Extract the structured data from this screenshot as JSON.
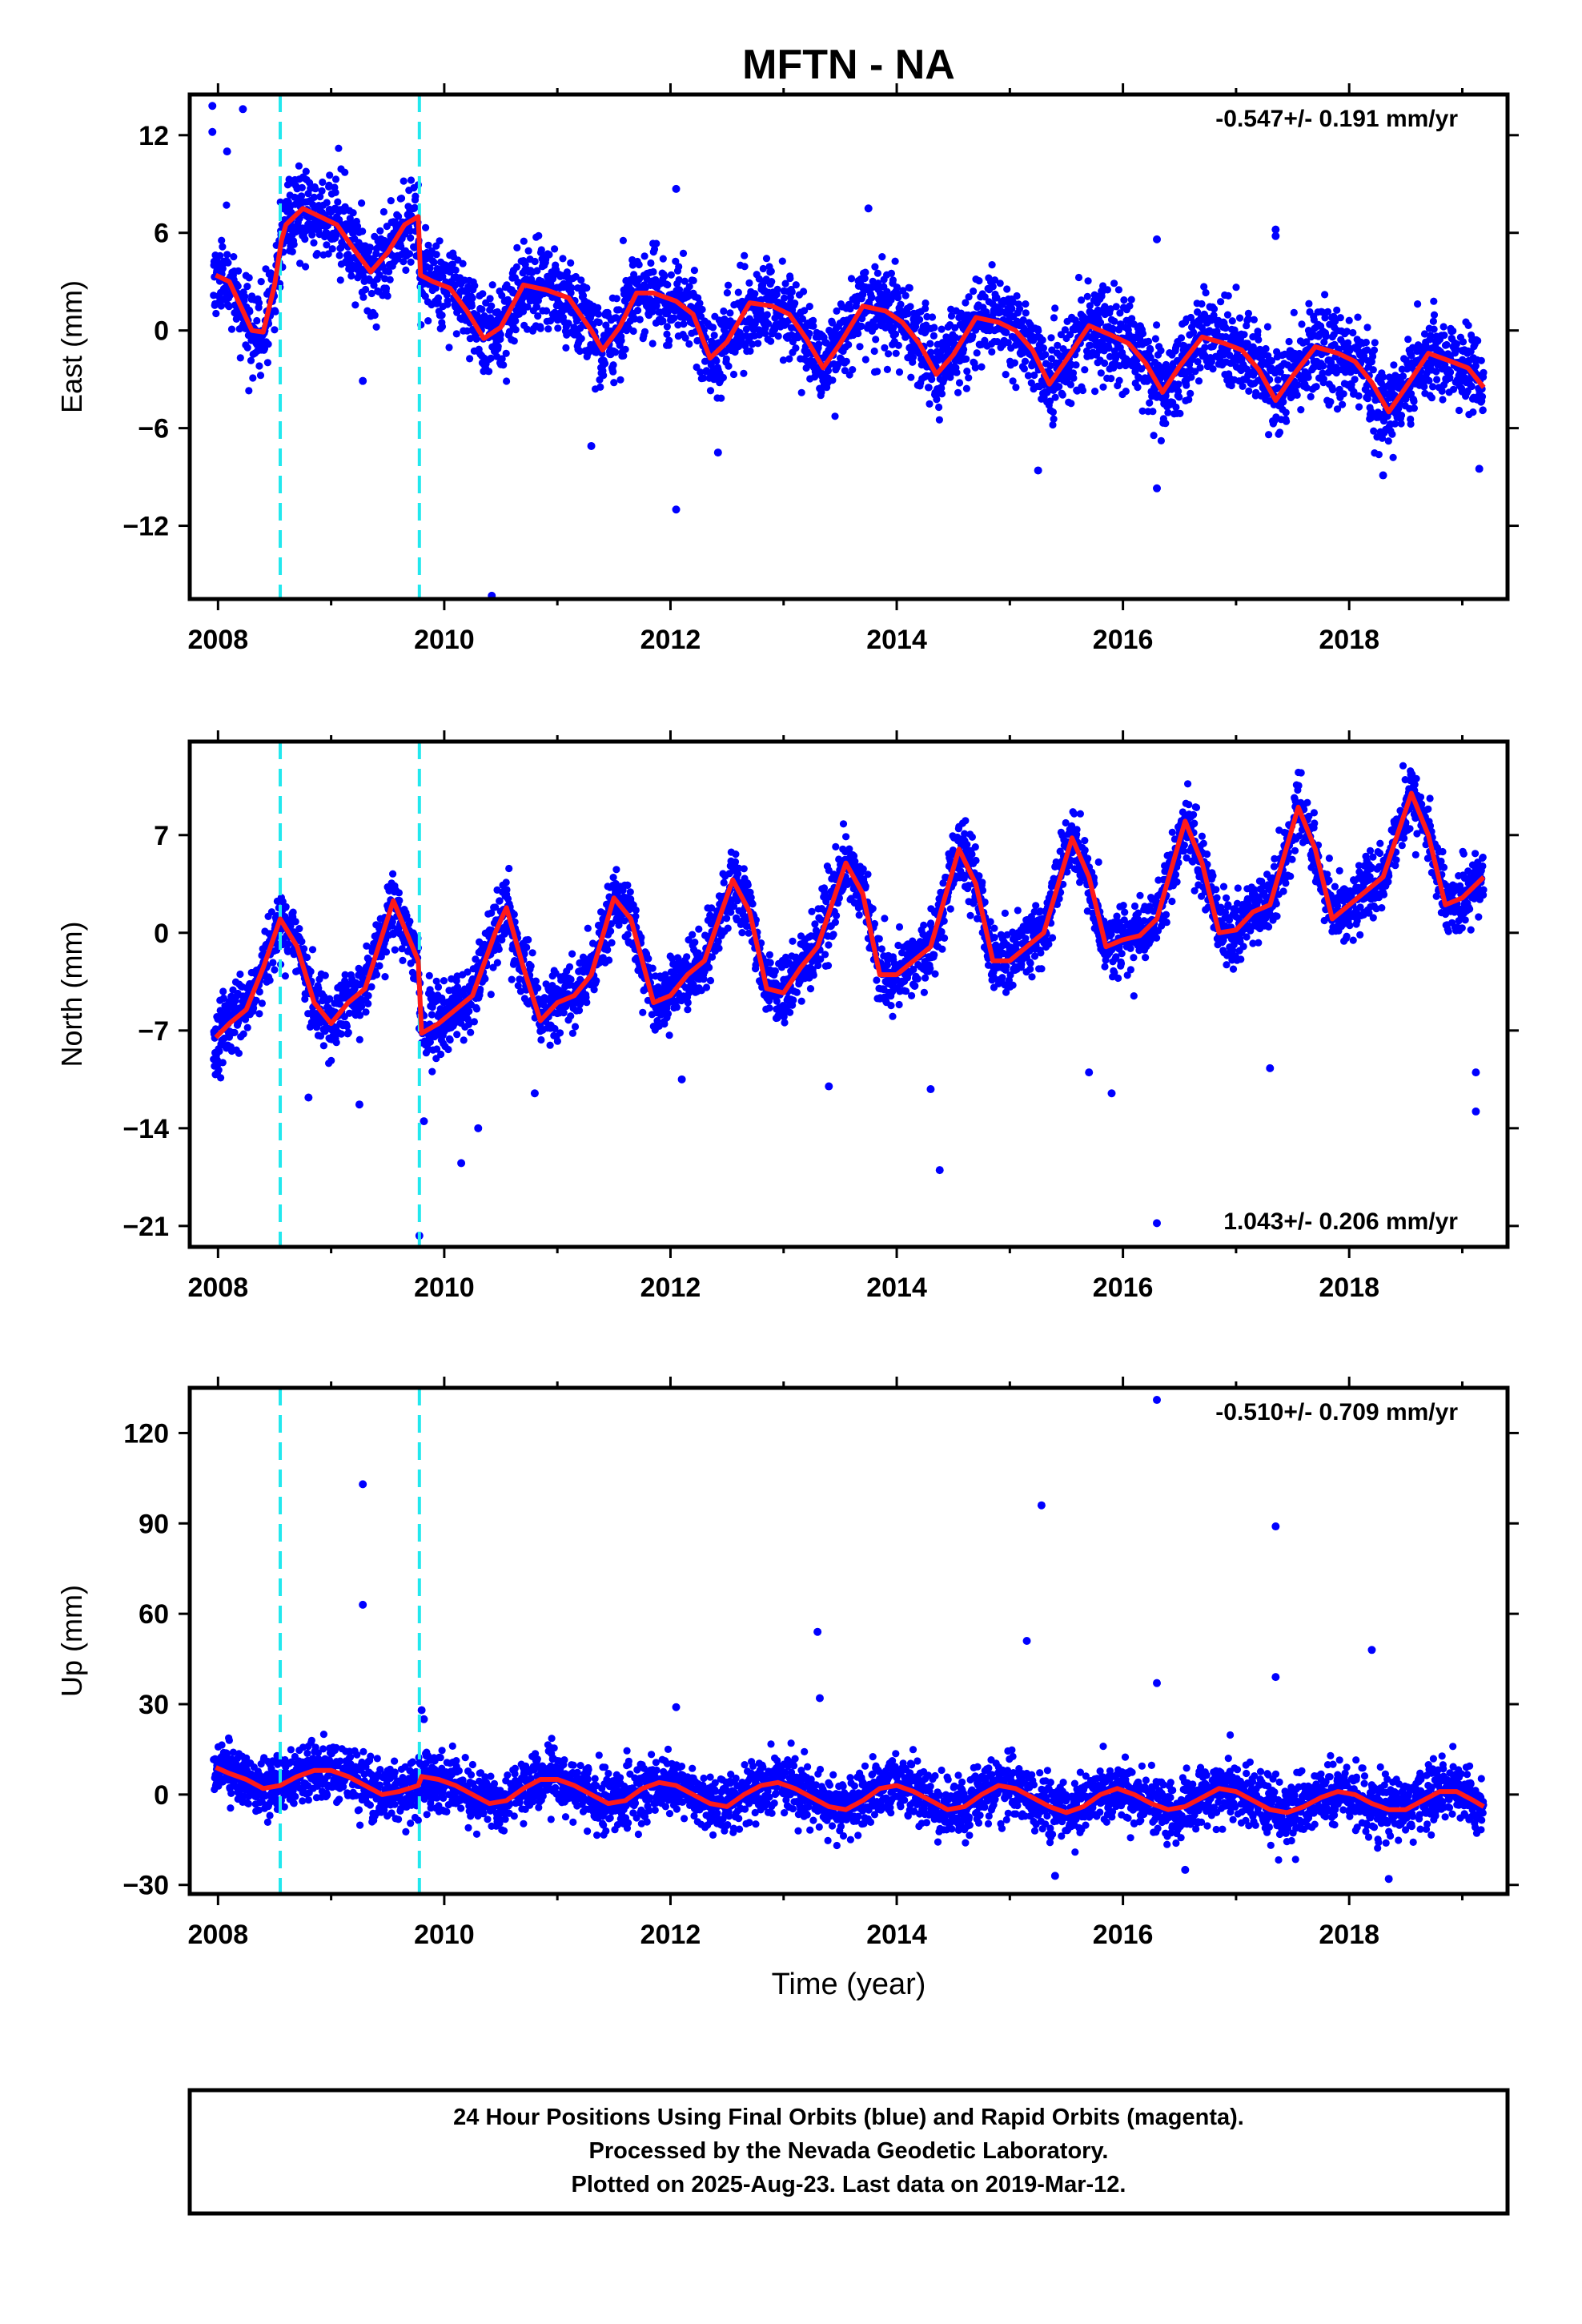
{
  "chart_data": {
    "type": "scatter",
    "title": "MFTN - NA",
    "xlabel": "Time (year)",
    "xlim": [
      2007.75,
      2019.4
    ],
    "xticks": [
      2008,
      2010,
      2012,
      2014,
      2016,
      2018
    ],
    "xticks_labeled": [
      "2008",
      "2010",
      "2012",
      "2014",
      "2016",
      "2018"
    ],
    "offsets": [
      2008.55,
      2009.78
    ],
    "offset_color": "#22e8ee",
    "point_color": "#0000ff",
    "model_color": "#ff1a1a",
    "panels": [
      {
        "name": "east",
        "ylabel": "East (mm)",
        "ylim": [
          -16.5,
          14.5
        ],
        "yticks": [
          -12,
          -6,
          0,
          6,
          12
        ],
        "yticks_labeled": [
          "-12",
          "-6",
          "0",
          "6",
          "12"
        ],
        "rate": "-0.547+/- 0.191 mm/yr",
        "rate_position": "top-right",
        "series": [
          {
            "name": "daily positions",
            "seed": 11,
            "trend_mm_per_yr": -0.547,
            "annual_amp": 2.3,
            "annual_peak_frac": 0.75,
            "semi_amp": 0.4,
            "noise": 1.3
          }
        ],
        "model": {
          "x": [
            2007.98,
            2008.1,
            2008.2,
            2008.3,
            2008.4,
            2008.5,
            2008.56,
            2008.6,
            2008.75,
            2008.9,
            2009.05,
            2009.2,
            2009.35,
            2009.5,
            2009.65,
            2009.77,
            2009.79,
            2009.9,
            2010.05,
            2010.2,
            2010.35,
            2010.5,
            2010.7,
            2010.9,
            2011.1,
            2011.3,
            2011.4,
            2011.55,
            2011.7,
            2011.85,
            2012.05,
            2012.2,
            2012.35,
            2012.5,
            2012.7,
            2012.9,
            2013.05,
            2013.2,
            2013.35,
            2013.5,
            2013.7,
            2013.9,
            2014.05,
            2014.2,
            2014.35,
            2014.5,
            2014.7,
            2014.9,
            2015.05,
            2015.2,
            2015.35,
            2015.5,
            2015.7,
            2015.9,
            2016.05,
            2016.2,
            2016.35,
            2016.5,
            2016.7,
            2016.9,
            2017.05,
            2017.2,
            2017.35,
            2017.5,
            2017.7,
            2017.9,
            2018.05,
            2018.2,
            2018.35,
            2018.5,
            2018.7,
            2018.9,
            2019.05,
            2019.19
          ],
          "y": [
            3.4,
            3.0,
            1.5,
            0.0,
            -0.1,
            2.8,
            5.5,
            6.5,
            7.5,
            7.0,
            6.5,
            5.0,
            3.6,
            4.8,
            6.5,
            7.0,
            3.4,
            3.0,
            2.6,
            1.2,
            -0.5,
            0.2,
            2.8,
            2.5,
            2.0,
            0.0,
            -1.2,
            0.2,
            2.3,
            2.3,
            1.8,
            1.0,
            -1.7,
            -0.7,
            1.7,
            1.5,
            1.0,
            -0.5,
            -2.3,
            -0.8,
            1.5,
            1.2,
            0.5,
            -0.8,
            -2.7,
            -1.5,
            0.8,
            0.5,
            0.0,
            -1.2,
            -3.3,
            -1.8,
            0.3,
            -0.3,
            -0.8,
            -2.0,
            -3.8,
            -2.2,
            -0.4,
            -0.8,
            -1.2,
            -2.4,
            -4.3,
            -2.8,
            -1.0,
            -1.4,
            -1.9,
            -3.2,
            -5.0,
            -3.5,
            -1.4,
            -1.9,
            -2.3,
            -3.5
          ]
        },
        "outliers": [
          {
            "x": 2007.95,
            "y": 13.8
          },
          {
            "x": 2007.95,
            "y": 12.2
          },
          {
            "x": 2008.08,
            "y": 11.0
          },
          {
            "x": 2008.22,
            "y": 13.6
          },
          {
            "x": 2009.28,
            "y": -3.1
          },
          {
            "x": 2010.42,
            "y": -16.3
          },
          {
            "x": 2011.3,
            "y": -7.1
          },
          {
            "x": 2012.05,
            "y": -11.0
          },
          {
            "x": 2012.05,
            "y": 8.7
          },
          {
            "x": 2012.42,
            "y": -7.5
          },
          {
            "x": 2013.75,
            "y": 7.5
          },
          {
            "x": 2015.25,
            "y": -8.6
          },
          {
            "x": 2016.3,
            "y": -9.7
          },
          {
            "x": 2016.3,
            "y": 5.6
          },
          {
            "x": 2017.35,
            "y": 6.2
          },
          {
            "x": 2017.35,
            "y": 5.8
          },
          {
            "x": 2018.3,
            "y": -8.9
          },
          {
            "x": 2019.15,
            "y": -8.5
          }
        ]
      },
      {
        "name": "north",
        "ylabel": "North (mm)",
        "ylim": [
          -22.5,
          13.7
        ],
        "yticks": [
          -21,
          -14,
          -7,
          0,
          7
        ],
        "yticks_labeled": [
          "-21",
          "-14",
          "-7",
          "0",
          "7"
        ],
        "rate": "1.043+/- 0.206 mm/yr",
        "rate_position": "bottom-right",
        "series": [
          {
            "name": "daily positions",
            "seed": 23,
            "trend_mm_per_yr": 1.043,
            "annual_amp": 4.0,
            "annual_peak_frac": 0.55,
            "semi_amp": 0.8,
            "noise": 1.2
          }
        ],
        "model": {
          "x": [
            2007.98,
            2008.1,
            2008.25,
            2008.4,
            2008.55,
            2008.7,
            2008.85,
            2009.0,
            2009.15,
            2009.3,
            2009.55,
            2009.77,
            2009.8,
            2009.95,
            2010.1,
            2010.25,
            2010.45,
            2010.55,
            2010.7,
            2010.85,
            2011.0,
            2011.15,
            2011.3,
            2011.5,
            2011.65,
            2011.85,
            2012.0,
            2012.15,
            2012.3,
            2012.55,
            2012.7,
            2012.85,
            2013.0,
            2013.15,
            2013.3,
            2013.55,
            2013.7,
            2013.85,
            2014.0,
            2014.15,
            2014.3,
            2014.55,
            2014.7,
            2014.85,
            2015.0,
            2015.15,
            2015.3,
            2015.55,
            2015.7,
            2015.85,
            2016.0,
            2016.15,
            2016.3,
            2016.55,
            2016.7,
            2016.85,
            2017.0,
            2017.15,
            2017.3,
            2017.55,
            2017.7,
            2017.85,
            2018.0,
            2018.15,
            2018.3,
            2018.55,
            2018.7,
            2018.85,
            2019.0,
            2019.19
          ],
          "y": [
            -7.5,
            -6.5,
            -5.5,
            -2.5,
            1.0,
            -1.0,
            -5.0,
            -6.5,
            -5.0,
            -4.0,
            2.3,
            -2.0,
            -7.2,
            -6.5,
            -5.5,
            -4.5,
            0.0,
            1.8,
            -2.5,
            -6.3,
            -5.0,
            -4.5,
            -3.0,
            2.5,
            1.0,
            -5.0,
            -4.5,
            -3.0,
            -2.0,
            3.8,
            1.5,
            -4.0,
            -4.3,
            -2.5,
            -1.0,
            5.0,
            2.8,
            -3.0,
            -3.0,
            -2.0,
            -1.0,
            6.0,
            3.5,
            -2.0,
            -2.0,
            -1.0,
            0.0,
            6.8,
            4.0,
            -1.0,
            -0.5,
            -0.2,
            1.0,
            8.0,
            5.0,
            0.0,
            0.2,
            1.5,
            2.0,
            9.0,
            6.0,
            1.0,
            2.0,
            3.0,
            4.0,
            10.0,
            7.0,
            2.0,
            2.5,
            4.0
          ]
        },
        "outliers": [
          {
            "x": 2008.8,
            "y": -11.8
          },
          {
            "x": 2009.25,
            "y": -12.3
          },
          {
            "x": 2009.78,
            "y": -21.7
          },
          {
            "x": 2009.82,
            "y": -13.5
          },
          {
            "x": 2010.15,
            "y": -16.5
          },
          {
            "x": 2010.3,
            "y": -14.0
          },
          {
            "x": 2010.8,
            "y": -11.5
          },
          {
            "x": 2012.1,
            "y": -10.5
          },
          {
            "x": 2013.4,
            "y": -11.0
          },
          {
            "x": 2014.3,
            "y": -11.2
          },
          {
            "x": 2014.38,
            "y": -17.0
          },
          {
            "x": 2015.7,
            "y": -10.0
          },
          {
            "x": 2015.9,
            "y": -11.5
          },
          {
            "x": 2016.3,
            "y": -20.8
          },
          {
            "x": 2017.3,
            "y": -9.7
          },
          {
            "x": 2019.12,
            "y": -10.0
          },
          {
            "x": 2019.12,
            "y": -12.8
          }
        ]
      },
      {
        "name": "up",
        "ylabel": "Up (mm)",
        "ylim": [
          -33,
          135
        ],
        "yticks": [
          -30,
          0,
          30,
          60,
          90,
          120
        ],
        "yticks_labeled": [
          "-30",
          "0",
          "30",
          "60",
          "90",
          "120"
        ],
        "rate": "-0.510+/- 0.709 mm/yr",
        "rate_position": "top-right",
        "series": [
          {
            "name": "daily positions",
            "seed": 37,
            "trend_mm_per_yr": -0.51,
            "annual_amp": 4.5,
            "annual_peak_frac": 0.9,
            "semi_amp": 1.0,
            "noise": 4.8
          }
        ],
        "model": {
          "x": [
            2007.98,
            2008.1,
            2008.25,
            2008.4,
            2008.55,
            2008.7,
            2008.85,
            2009.0,
            2009.15,
            2009.3,
            2009.45,
            2009.6,
            2009.77,
            2009.8,
            2009.95,
            2010.1,
            2010.25,
            2010.4,
            2010.55,
            2010.7,
            2010.85,
            2011.0,
            2011.15,
            2011.3,
            2011.45,
            2011.6,
            2011.75,
            2011.9,
            2012.05,
            2012.2,
            2012.35,
            2012.5,
            2012.65,
            2012.8,
            2012.95,
            2013.1,
            2013.25,
            2013.4,
            2013.55,
            2013.7,
            2013.85,
            2014.0,
            2014.15,
            2014.3,
            2014.45,
            2014.6,
            2014.75,
            2014.9,
            2015.05,
            2015.2,
            2015.35,
            2015.5,
            2015.65,
            2015.8,
            2015.95,
            2016.1,
            2016.25,
            2016.4,
            2016.55,
            2016.7,
            2016.85,
            2017.0,
            2017.15,
            2017.3,
            2017.45,
            2017.6,
            2017.75,
            2017.9,
            2018.05,
            2018.2,
            2018.35,
            2018.5,
            2018.65,
            2018.8,
            2018.95,
            2019.1,
            2019.19
          ],
          "y": [
            9,
            7,
            5,
            2,
            3,
            6,
            8,
            8,
            6,
            3,
            0,
            1,
            3,
            6,
            5,
            3,
            0,
            -3,
            -2,
            2,
            5,
            5,
            3,
            0,
            -3,
            -2,
            2,
            4,
            3,
            0,
            -3,
            -4,
            0,
            3,
            4,
            2,
            -1,
            -4,
            -5,
            -2,
            2,
            3,
            1,
            -2,
            -5,
            -4,
            0,
            3,
            2,
            -1,
            -4,
            -6,
            -4,
            0,
            2,
            0,
            -3,
            -5,
            -4,
            -1,
            2,
            1,
            -2,
            -5,
            -6,
            -4,
            -1,
            1,
            0,
            -3,
            -5,
            -5,
            -2,
            1,
            1,
            -2,
            -4
          ]
        },
        "outliers": [
          {
            "x": 2009.28,
            "y": 103
          },
          {
            "x": 2009.28,
            "y": 63
          },
          {
            "x": 2009.8,
            "y": 28
          },
          {
            "x": 2009.82,
            "y": 25
          },
          {
            "x": 2012.05,
            "y": 29
          },
          {
            "x": 2013.3,
            "y": 54
          },
          {
            "x": 2013.32,
            "y": 32
          },
          {
            "x": 2015.15,
            "y": 51
          },
          {
            "x": 2015.28,
            "y": 96
          },
          {
            "x": 2015.4,
            "y": -27
          },
          {
            "x": 2016.3,
            "y": 131
          },
          {
            "x": 2016.3,
            "y": 37
          },
          {
            "x": 2016.55,
            "y": -25
          },
          {
            "x": 2017.35,
            "y": 89
          },
          {
            "x": 2017.35,
            "y": 39
          },
          {
            "x": 2018.2,
            "y": 48
          },
          {
            "x": 2018.35,
            "y": -28
          }
        ]
      }
    ],
    "footer_lines": [
      "24 Hour Positions Using Final Orbits (blue) and Rapid Orbits (magenta).",
      "Processed by the Nevada Geodetic Laboratory.",
      "Plotted on 2025-Aug-23. Last data on 2019-Mar-12."
    ]
  }
}
